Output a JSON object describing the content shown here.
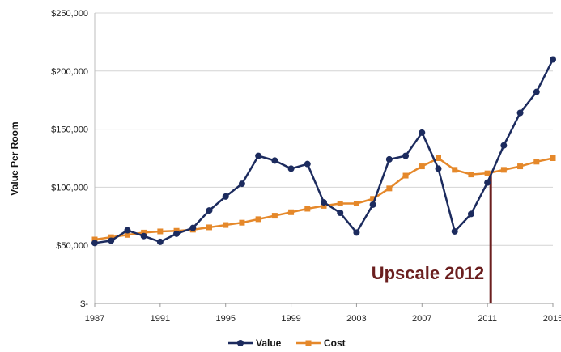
{
  "chart_data": {
    "type": "line",
    "ylabel": "Value Per Room",
    "xlabel": "",
    "xlim": [
      1987,
      2015
    ],
    "ylim": [
      0,
      250000
    ],
    "x_ticks": [
      "1987",
      "1991",
      "1995",
      "1999",
      "2003",
      "2007",
      "2011",
      "2015"
    ],
    "y_ticks": [
      "$-",
      "$50,000",
      "$100,000",
      "$150,000",
      "$200,000",
      "$250,000"
    ],
    "grid": "horizontal",
    "legend_position": "bottom",
    "series": [
      {
        "name": "Value",
        "color": "#1c2b5e",
        "marker": "circle",
        "x": [
          1987,
          1988,
          1989,
          1990,
          1991,
          1992,
          1993,
          1994,
          1995,
          1996,
          1997,
          1998,
          1999,
          2000,
          2001,
          2002,
          2003,
          2004,
          2005,
          2006,
          2007,
          2008,
          2009,
          2010,
          2011,
          2012,
          2013,
          2014,
          2015
        ],
        "values": [
          52000,
          54000,
          63000,
          58000,
          53000,
          60000,
          65000,
          80000,
          92000,
          103000,
          127000,
          123000,
          116000,
          120000,
          87000,
          78000,
          61000,
          85000,
          124000,
          127000,
          147000,
          116000,
          62000,
          77000,
          104000,
          136000,
          164000,
          182000,
          210000
        ]
      },
      {
        "name": "Cost",
        "color": "#e5882a",
        "marker": "square",
        "x": [
          1987,
          1988,
          1989,
          1990,
          1991,
          1992,
          1993,
          1994,
          1995,
          1996,
          1997,
          1998,
          1999,
          2000,
          2001,
          2002,
          2003,
          2004,
          2005,
          2006,
          2007,
          2008,
          2009,
          2010,
          2011,
          2012,
          2013,
          2014,
          2015
        ],
        "values": [
          55000,
          57000,
          59000,
          61000,
          62000,
          62500,
          63500,
          65500,
          67500,
          69500,
          72500,
          75500,
          78500,
          81500,
          84000,
          86000,
          86000,
          90000,
          99000,
          110000,
          118000,
          125000,
          115000,
          111000,
          112000,
          115000,
          118000,
          122000,
          125000
        ]
      }
    ],
    "annotation": {
      "text": "Upscale 2012",
      "x": 2011.2,
      "color": "#6b1f1f"
    }
  }
}
